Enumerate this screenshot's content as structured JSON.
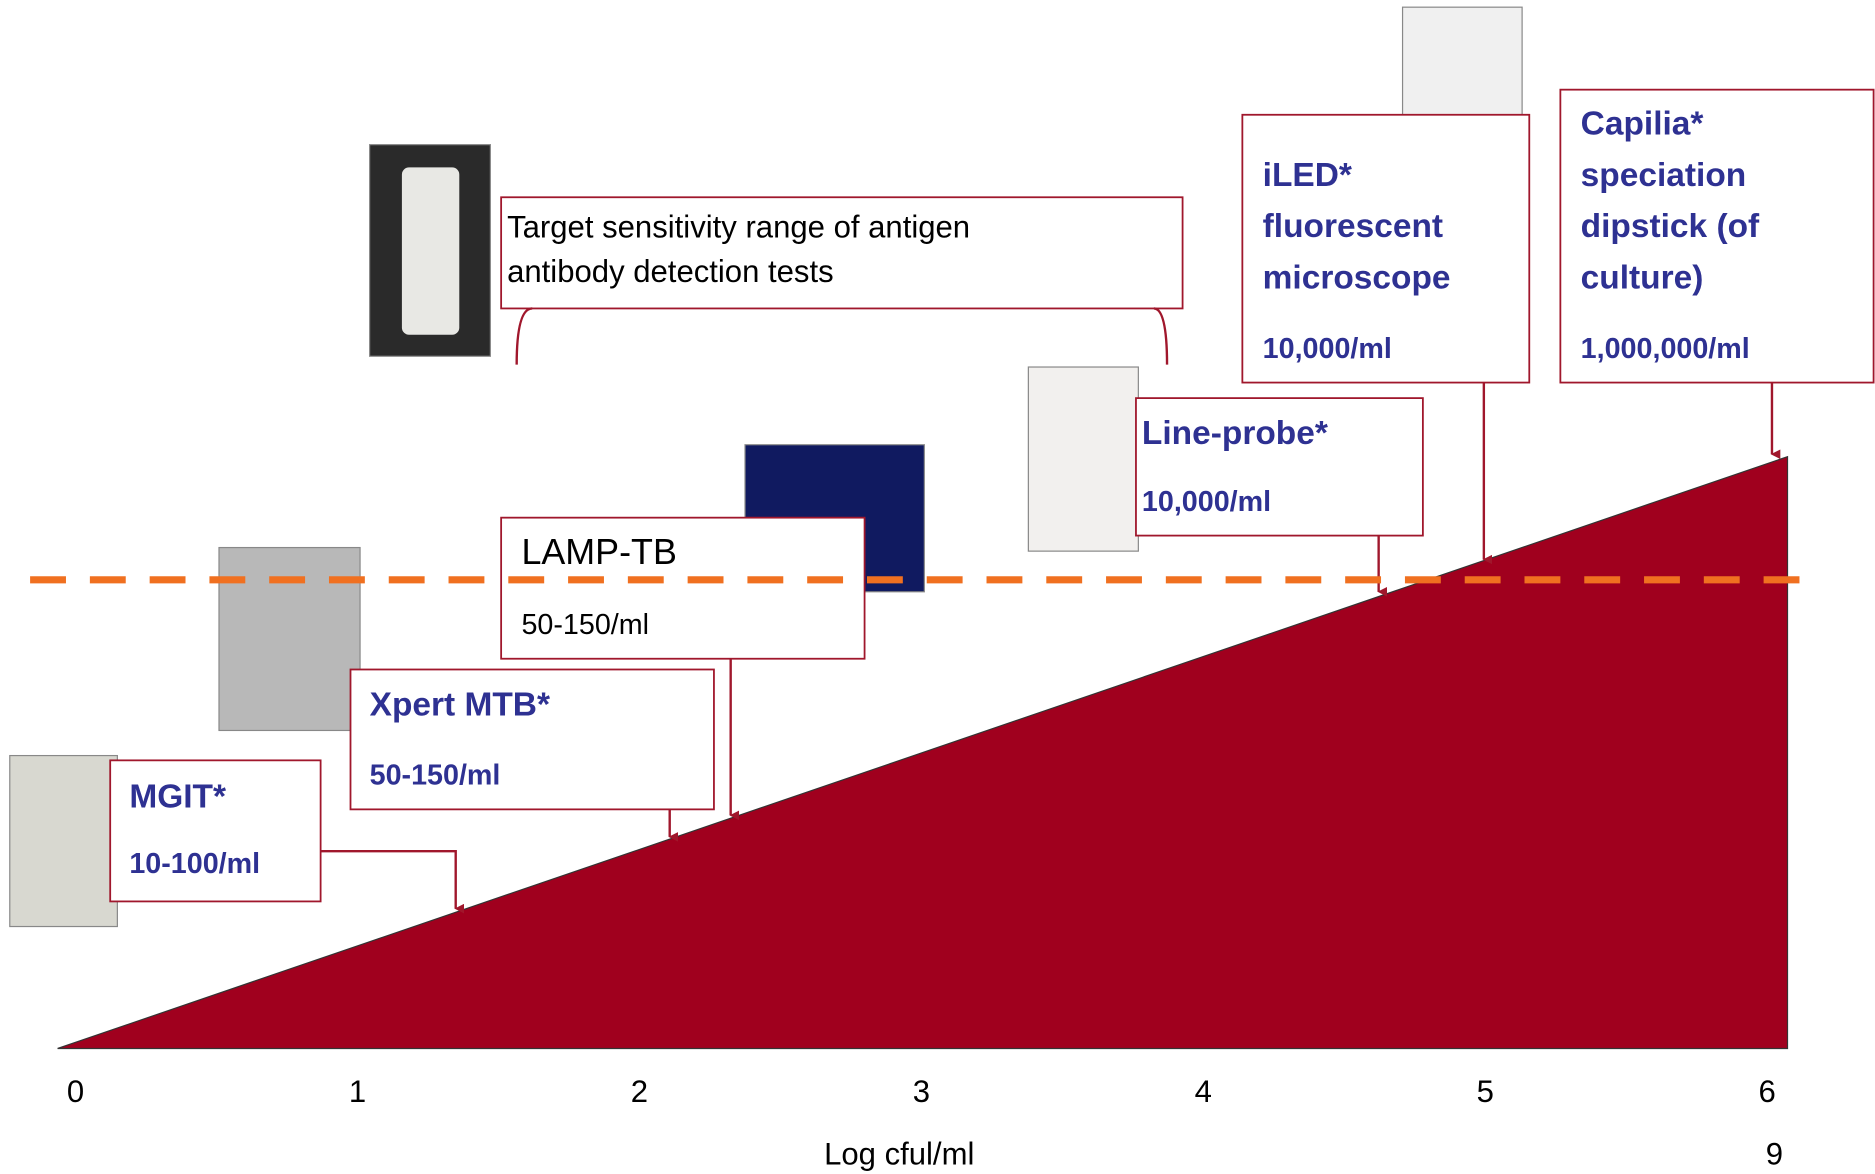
{
  "axis": {
    "ticks": [
      0,
      1,
      2,
      3,
      4,
      5,
      6
    ],
    "label": "Log cful/ml"
  },
  "page_number": "9",
  "target_range": {
    "lines": [
      "Target sensitivity range of antigen",
      "antibody detection tests"
    ]
  },
  "tests": [
    {
      "name": [
        "MGIT*"
      ],
      "sensitivity": "10-100/ml"
    },
    {
      "name": [
        "Xpert MTB*"
      ],
      "sensitivity": "50-150/ml"
    },
    {
      "name": [
        "LAMP-TB"
      ],
      "sensitivity": "50-150/ml"
    },
    {
      "name": [
        "Line-probe*"
      ],
      "sensitivity": "10,000/ml"
    },
    {
      "name": [
        "iLED*",
        "fluorescent",
        "microscope"
      ],
      "sensitivity": "10,000/ml"
    },
    {
      "name": [
        "Capilia*",
        "speciation",
        "dipstick (of",
        "culture)"
      ],
      "sensitivity": "1,000,000/ml"
    }
  ]
}
